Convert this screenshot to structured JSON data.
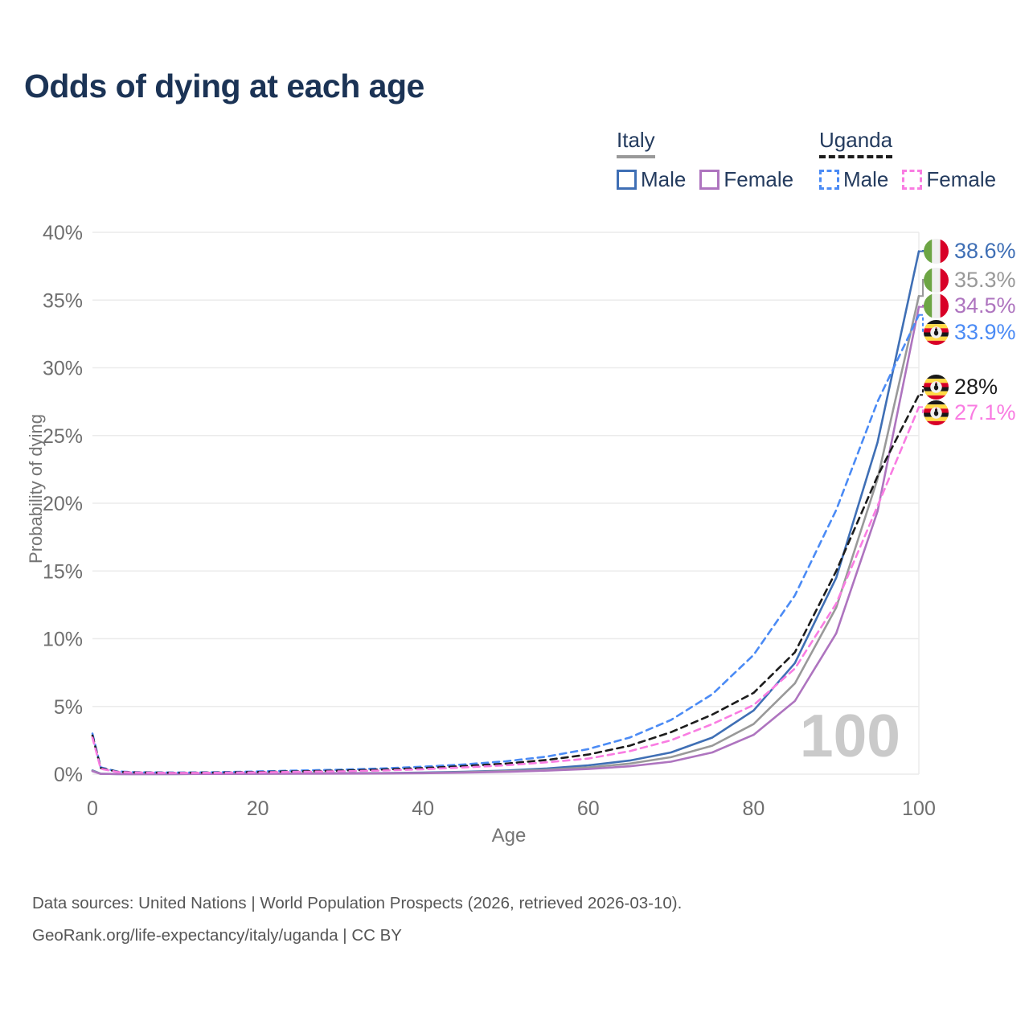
{
  "title": "Odds of dying at each age",
  "legend": {
    "groups": [
      {
        "label": "Italy",
        "underline_style": "solid",
        "underline_color": "#999999",
        "items": [
          {
            "label": "Male",
            "color": "#3f6fb5",
            "dashed": false
          },
          {
            "label": "Female",
            "color": "#ae74bf",
            "dashed": false
          }
        ]
      },
      {
        "label": "Uganda",
        "underline_style": "dashed",
        "underline_color": "#1c1c1c",
        "items": [
          {
            "label": "Male",
            "color": "#4b8bf5",
            "dashed": true
          },
          {
            "label": "Female",
            "color": "#f97ce2",
            "dashed": true
          }
        ]
      }
    ]
  },
  "chart_data": {
    "type": "line",
    "title": "Odds of dying at each age",
    "xlabel": "Age",
    "ylabel": "Probability of dying",
    "xlim": [
      0,
      100
    ],
    "ylim": [
      0,
      40
    ],
    "grid": "horizontal",
    "legend_position": "top-right",
    "watermark": "100",
    "x_ticks": [
      {
        "value": 0,
        "label": "0"
      },
      {
        "value": 20,
        "label": "20"
      },
      {
        "value": 40,
        "label": "40"
      },
      {
        "value": 60,
        "label": "60"
      },
      {
        "value": 80,
        "label": "80"
      },
      {
        "value": 100,
        "label": "100"
      }
    ],
    "y_ticks": [
      {
        "value": 0,
        "label": "0%"
      },
      {
        "value": 5,
        "label": "5%"
      },
      {
        "value": 10,
        "label": "10%"
      },
      {
        "value": 15,
        "label": "15%"
      },
      {
        "value": 20,
        "label": "20%"
      },
      {
        "value": 25,
        "label": "25%"
      },
      {
        "value": 30,
        "label": "30%"
      },
      {
        "value": 35,
        "label": "35%"
      },
      {
        "value": 40,
        "label": "40%"
      }
    ],
    "series": [
      {
        "id": "italy-male",
        "name": "Italy Male",
        "country": "Italy",
        "sex": "Male",
        "color": "#3f6fb5",
        "dashed": false,
        "flag": "italy-flag",
        "end_label": "38.6%",
        "points": [
          [
            0,
            0.28
          ],
          [
            1,
            0.03
          ],
          [
            3,
            0.012
          ],
          [
            5,
            0.01
          ],
          [
            10,
            0.012
          ],
          [
            15,
            0.03
          ],
          [
            20,
            0.05
          ],
          [
            25,
            0.06
          ],
          [
            30,
            0.07
          ],
          [
            35,
            0.08
          ],
          [
            40,
            0.11
          ],
          [
            45,
            0.17
          ],
          [
            50,
            0.27
          ],
          [
            55,
            0.42
          ],
          [
            60,
            0.65
          ],
          [
            65,
            1.0
          ],
          [
            70,
            1.6
          ],
          [
            75,
            2.7
          ],
          [
            80,
            4.7
          ],
          [
            85,
            8.2
          ],
          [
            90,
            14.5
          ],
          [
            95,
            24.5
          ],
          [
            100,
            38.6
          ]
        ]
      },
      {
        "id": "italy-both",
        "name": "Italy (both sexes)",
        "country": "Italy",
        "sex": "Both",
        "color": "#999999",
        "dashed": false,
        "flag": "italy-flag",
        "end_label": "35.3%",
        "points": [
          [
            0,
            0.25
          ],
          [
            1,
            0.025
          ],
          [
            3,
            0.01
          ],
          [
            5,
            0.009
          ],
          [
            10,
            0.01
          ],
          [
            15,
            0.022
          ],
          [
            20,
            0.035
          ],
          [
            25,
            0.045
          ],
          [
            30,
            0.055
          ],
          [
            35,
            0.065
          ],
          [
            40,
            0.09
          ],
          [
            45,
            0.14
          ],
          [
            50,
            0.22
          ],
          [
            55,
            0.33
          ],
          [
            60,
            0.5
          ],
          [
            65,
            0.78
          ],
          [
            70,
            1.25
          ],
          [
            75,
            2.1
          ],
          [
            80,
            3.7
          ],
          [
            85,
            6.7
          ],
          [
            90,
            12.3
          ],
          [
            95,
            21.8
          ],
          [
            100,
            35.3
          ]
        ]
      },
      {
        "id": "italy-female",
        "name": "Italy Female",
        "country": "Italy",
        "sex": "Female",
        "color": "#ae74bf",
        "dashed": false,
        "flag": "italy-flag",
        "end_label": "34.5%",
        "points": [
          [
            0,
            0.22
          ],
          [
            1,
            0.02
          ],
          [
            3,
            0.009
          ],
          [
            5,
            0.008
          ],
          [
            10,
            0.009
          ],
          [
            15,
            0.015
          ],
          [
            20,
            0.022
          ],
          [
            25,
            0.03
          ],
          [
            30,
            0.04
          ],
          [
            35,
            0.05
          ],
          [
            40,
            0.07
          ],
          [
            45,
            0.11
          ],
          [
            50,
            0.17
          ],
          [
            55,
            0.26
          ],
          [
            60,
            0.38
          ],
          [
            65,
            0.58
          ],
          [
            70,
            0.92
          ],
          [
            75,
            1.6
          ],
          [
            80,
            2.9
          ],
          [
            85,
            5.4
          ],
          [
            90,
            10.4
          ],
          [
            95,
            19.4
          ],
          [
            100,
            34.5
          ]
        ]
      },
      {
        "id": "uganda-male",
        "name": "Uganda Male",
        "country": "Uganda",
        "sex": "Male",
        "color": "#4b8bf5",
        "dashed": true,
        "flag": "uganda-flag",
        "end_label": "33.9%",
        "points": [
          [
            0,
            3.0
          ],
          [
            1,
            0.5
          ],
          [
            3,
            0.2
          ],
          [
            5,
            0.15
          ],
          [
            10,
            0.12
          ],
          [
            15,
            0.14
          ],
          [
            20,
            0.2
          ],
          [
            25,
            0.27
          ],
          [
            30,
            0.33
          ],
          [
            35,
            0.42
          ],
          [
            40,
            0.55
          ],
          [
            45,
            0.72
          ],
          [
            50,
            0.95
          ],
          [
            55,
            1.3
          ],
          [
            60,
            1.85
          ],
          [
            65,
            2.7
          ],
          [
            70,
            4.0
          ],
          [
            75,
            5.9
          ],
          [
            80,
            8.8
          ],
          [
            85,
            13.2
          ],
          [
            90,
            19.5
          ],
          [
            95,
            27.5
          ],
          [
            100,
            33.9
          ]
        ]
      },
      {
        "id": "uganda-both",
        "name": "Uganda (both sexes)",
        "country": "Uganda",
        "sex": "Both",
        "color": "#1c1c1c",
        "dashed": true,
        "flag": "uganda-flag",
        "end_label": "28%",
        "points": [
          [
            0,
            2.85
          ],
          [
            1,
            0.45
          ],
          [
            3,
            0.18
          ],
          [
            5,
            0.13
          ],
          [
            10,
            0.1
          ],
          [
            15,
            0.12
          ],
          [
            20,
            0.16
          ],
          [
            25,
            0.21
          ],
          [
            30,
            0.26
          ],
          [
            35,
            0.34
          ],
          [
            40,
            0.45
          ],
          [
            45,
            0.6
          ],
          [
            50,
            0.78
          ],
          [
            55,
            1.05
          ],
          [
            60,
            1.45
          ],
          [
            65,
            2.1
          ],
          [
            70,
            3.1
          ],
          [
            75,
            4.4
          ],
          [
            80,
            6.0
          ],
          [
            85,
            9.0
          ],
          [
            90,
            15.0
          ],
          [
            95,
            22.0
          ],
          [
            100,
            28.0
          ]
        ]
      },
      {
        "id": "uganda-female",
        "name": "Uganda Female",
        "country": "Uganda",
        "sex": "Female",
        "color": "#f97ce2",
        "dashed": true,
        "flag": "uganda-flag",
        "end_label": "27.1%",
        "points": [
          [
            0,
            2.7
          ],
          [
            1,
            0.4
          ],
          [
            3,
            0.16
          ],
          [
            5,
            0.12
          ],
          [
            10,
            0.09
          ],
          [
            15,
            0.1
          ],
          [
            20,
            0.13
          ],
          [
            25,
            0.17
          ],
          [
            30,
            0.21
          ],
          [
            35,
            0.27
          ],
          [
            40,
            0.36
          ],
          [
            45,
            0.5
          ],
          [
            50,
            0.65
          ],
          [
            55,
            0.88
          ],
          [
            60,
            1.15
          ],
          [
            65,
            1.7
          ],
          [
            70,
            2.5
          ],
          [
            75,
            3.7
          ],
          [
            80,
            5.1
          ],
          [
            85,
            7.8
          ],
          [
            90,
            12.6
          ],
          [
            95,
            19.8
          ],
          [
            100,
            27.1
          ]
        ]
      }
    ]
  },
  "footer": {
    "line1": "Data sources: United Nations | World Population Prospects (2026, retrieved 2026-03-10).",
    "line2": "GeoRank.org/life-expectancy/italy/uganda | CC BY"
  }
}
